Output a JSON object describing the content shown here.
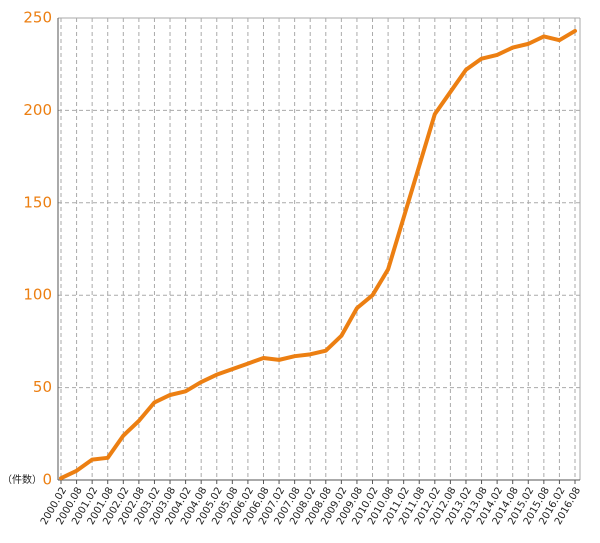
{
  "chart_data": {
    "type": "line",
    "y_label": "（件数）",
    "categories": [
      "2000.02",
      "2000.08",
      "2001.02",
      "2001.08",
      "2002.02",
      "2002.08",
      "2003.02",
      "2003.08",
      "2004.02",
      "2004.08",
      "2005.02",
      "2005.08",
      "2006.02",
      "2006.08",
      "2007.02",
      "2007.08",
      "2008.02",
      "2008.08",
      "2009.02",
      "2009.08",
      "2010.02",
      "2010.08",
      "2011.02",
      "2011.08",
      "2012.02",
      "2012.08",
      "2013.02",
      "2013.08",
      "2014.02",
      "2014.08",
      "2015.02",
      "2015.08",
      "2016.02",
      "2016.08"
    ],
    "values": [
      1,
      5,
      11,
      12,
      24,
      32,
      42,
      46,
      48,
      53,
      57,
      60,
      63,
      66,
      65,
      67,
      68,
      70,
      78,
      93,
      100,
      114,
      142,
      170,
      198,
      210,
      222,
      228,
      230,
      234,
      236,
      240,
      238,
      243
    ],
    "color": "#ec7f12",
    "axis_color": "#ec7f12",
    "ylim": [
      0,
      250
    ],
    "yticks": [
      0,
      50,
      100,
      150,
      200,
      250
    ],
    "grid": true
  }
}
